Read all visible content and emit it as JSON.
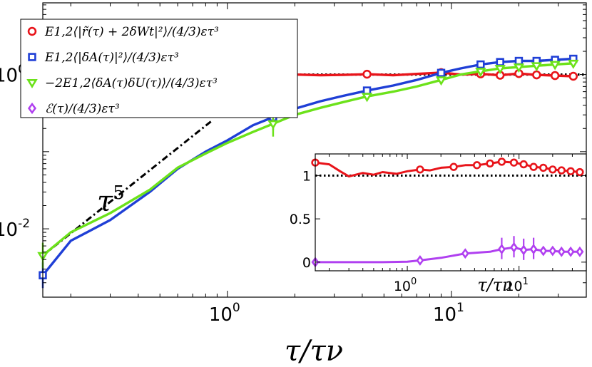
{
  "chart_data": [
    {
      "type": "line",
      "title": "",
      "xlabel": "τ/τν",
      "ylabel": "",
      "xscale": "log",
      "yscale": "log",
      "xlim": [
        0.15,
        40
      ],
      "ylim": [
        0.0013,
        8.5
      ],
      "x_ticks": [
        {
          "value": 1,
          "mantissa": "10",
          "exponent": "0"
        },
        {
          "value": 10,
          "mantissa": "10",
          "exponent": "1"
        }
      ],
      "y_ticks": [
        {
          "value": 0.01,
          "mantissa": "10",
          "exponent": "-2"
        },
        {
          "value": 1,
          "mantissa": "10",
          "exponent": "0"
        }
      ],
      "legend_position": "top-left",
      "series": [
        {
          "name": "E1,2⟨|r̃(τ) + 2δWt|²⟩/(4/3)ετ³",
          "color": "#e8141a",
          "marker": "circle",
          "x": [
            0.15,
            0.2,
            0.3,
            0.45,
            0.6,
            0.8,
            1.0,
            1.3,
            1.6,
            2.0,
            2.6,
            3.3,
            4.2,
            5.5,
            7.0,
            9.0,
            11,
            13.5,
            16.5,
            20,
            24,
            29,
            35
          ],
          "y": [
            1.05,
            1.0,
            0.98,
            1.0,
            0.97,
            1.0,
            0.98,
            0.99,
            0.97,
            1.0,
            0.98,
            0.99,
            1.01,
            0.98,
            1.02,
            1.06,
            1.0,
            1.02,
            0.98,
            1.03,
            0.99,
            0.97,
            0.95
          ],
          "marker_x": [
            0.15,
            1.6,
            4.2,
            9.0,
            13.5,
            16.5,
            20,
            24,
            29,
            35
          ],
          "marker_y": [
            1.05,
            0.97,
            1.01,
            1.06,
            1.02,
            0.98,
            1.03,
            0.99,
            0.97,
            0.95
          ]
        },
        {
          "name": "E1,2⟨|δA(τ)|²⟩/(4/3)ετ³",
          "color": "#1f3fd6",
          "marker": "square",
          "x": [
            0.15,
            0.2,
            0.3,
            0.45,
            0.6,
            0.8,
            1.0,
            1.3,
            1.6,
            2.0,
            2.6,
            3.3,
            4.2,
            5.5,
            7.0,
            9.0,
            11,
            13.5,
            16.5,
            20,
            24,
            29,
            35
          ],
          "y": [
            0.0025,
            0.007,
            0.013,
            0.03,
            0.06,
            0.1,
            0.14,
            0.22,
            0.28,
            0.36,
            0.45,
            0.53,
            0.62,
            0.72,
            0.85,
            1.05,
            1.2,
            1.35,
            1.45,
            1.5,
            1.5,
            1.55,
            1.6
          ],
          "marker_x": [
            0.15,
            1.6,
            4.2,
            9.0,
            13.5,
            16.5,
            20,
            24,
            29,
            35
          ],
          "marker_y": [
            0.0025,
            0.28,
            0.62,
            1.05,
            1.35,
            1.45,
            1.5,
            1.5,
            1.55,
            1.6
          ]
        },
        {
          "name": "−2E1,2⟨δA(τ)δU(τ)⟩/(4/3)ετ³",
          "color": "#6ce21a",
          "marker": "triangle-down",
          "x": [
            0.15,
            0.2,
            0.3,
            0.45,
            0.6,
            0.8,
            1.0,
            1.3,
            1.6,
            2.0,
            2.6,
            3.3,
            4.2,
            5.5,
            7.0,
            9.0,
            11,
            13.5,
            16.5,
            20,
            24,
            29,
            35
          ],
          "y": [
            0.0045,
            0.009,
            0.016,
            0.032,
            0.062,
            0.095,
            0.13,
            0.18,
            0.23,
            0.3,
            0.37,
            0.44,
            0.52,
            0.6,
            0.7,
            0.85,
            1.0,
            1.1,
            1.2,
            1.25,
            1.3,
            1.35,
            1.4
          ],
          "marker_x": [
            0.15,
            1.6,
            4.2,
            9.0,
            13.5,
            16.5,
            20,
            24,
            29,
            35
          ],
          "marker_y": [
            0.0045,
            0.23,
            0.52,
            0.85,
            1.1,
            1.2,
            1.25,
            1.3,
            1.35,
            1.4
          ]
        },
        {
          "name": "ℰ(τ)/(4/3)ετ³",
          "color": "#b040f0",
          "marker": "diamond",
          "x": [],
          "y": []
        }
      ],
      "reference_lines": [
        {
          "type": "horizontal",
          "y": 1,
          "style": "dotted",
          "color": "#000000"
        },
        {
          "type": "power-law",
          "label_base": "τ",
          "label_exponent": "5",
          "x": [
            0.15,
            0.85
          ],
          "y": [
            0.0045,
            0.25
          ],
          "style": "dash-dot",
          "color": "#000000"
        }
      ]
    },
    {
      "type": "line",
      "title": "",
      "xlabel": "τ/τν",
      "ylabel": "",
      "xscale": "log",
      "yscale": "linear",
      "xlim": [
        0.15,
        40
      ],
      "ylim": [
        -0.1,
        1.25
      ],
      "x_ticks": [
        {
          "value": 1,
          "mantissa": "10",
          "exponent": "0"
        },
        {
          "value": 10,
          "mantissa": "10",
          "exponent": "1"
        }
      ],
      "y_ticks": [
        {
          "value": 0,
          "label": "0"
        },
        {
          "value": 0.5,
          "label": "0.5"
        },
        {
          "value": 1,
          "label": "1"
        }
      ],
      "series": [
        {
          "name": "red",
          "color": "#e8141a",
          "marker": "circle",
          "x": [
            0.15,
            0.2,
            0.25,
            0.3,
            0.4,
            0.5,
            0.6,
            0.8,
            1.0,
            1.3,
            1.6,
            2.0,
            2.6,
            3.3,
            4.2,
            5.5,
            7.0,
            9.0,
            11,
            13.5,
            16.5,
            20,
            24,
            29,
            35
          ],
          "y": [
            1.15,
            1.13,
            1.05,
            0.99,
            1.03,
            1.01,
            1.04,
            1.02,
            1.05,
            1.07,
            1.06,
            1.09,
            1.1,
            1.12,
            1.12,
            1.14,
            1.16,
            1.15,
            1.13,
            1.1,
            1.09,
            1.07,
            1.06,
            1.05,
            1.04
          ],
          "marker_x": [
            0.15,
            1.3,
            2.6,
            4.2,
            5.5,
            7.0,
            9.0,
            11,
            13.5,
            16.5,
            20,
            24,
            29,
            35
          ],
          "marker_y": [
            1.15,
            1.07,
            1.1,
            1.12,
            1.14,
            1.16,
            1.15,
            1.13,
            1.1,
            1.09,
            1.07,
            1.06,
            1.05,
            1.04
          ]
        },
        {
          "name": "purple",
          "color": "#b040f0",
          "marker": "diamond",
          "x": [
            0.15,
            0.3,
            0.6,
            1.0,
            1.3,
            2.0,
            3.3,
            5.5,
            7.0,
            9.0,
            11,
            13.5,
            16.5,
            20,
            24,
            29,
            35
          ],
          "y": [
            0.0,
            0.0,
            0.0,
            0.005,
            0.02,
            0.05,
            0.1,
            0.12,
            0.15,
            0.17,
            0.14,
            0.15,
            0.13,
            0.13,
            0.12,
            0.12,
            0.12
          ],
          "marker_x": [
            0.15,
            1.3,
            3.3,
            7.0,
            9.0,
            11,
            13.5,
            16.5,
            20,
            24,
            29,
            35
          ],
          "marker_y": [
            0.0,
            0.02,
            0.1,
            0.15,
            0.17,
            0.14,
            0.15,
            0.13,
            0.13,
            0.12,
            0.12,
            0.12
          ]
        }
      ],
      "reference_lines": [
        {
          "type": "horizontal",
          "y": 1,
          "style": "dotted",
          "color": "#000000"
        }
      ]
    }
  ]
}
